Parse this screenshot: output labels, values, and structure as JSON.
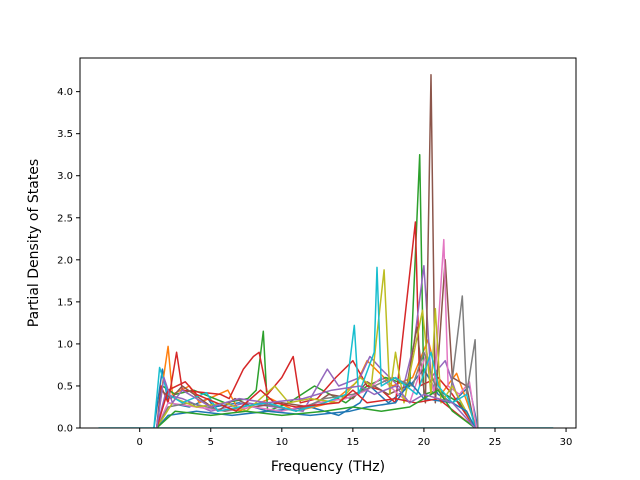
{
  "chart_data": {
    "type": "line",
    "xlabel": "Frequency (THz)",
    "ylabel": "Partial Density of States",
    "xlim": [
      -4.2,
      30.7
    ],
    "ylim": [
      0,
      4.4
    ],
    "x_ticks": [
      0,
      5,
      10,
      15,
      20,
      25,
      30
    ],
    "y_ticks": [
      0.0,
      0.5,
      1.0,
      1.5,
      2.0,
      2.5,
      3.0,
      3.5,
      4.0
    ],
    "x_tick_labels": [
      "0",
      "5",
      "10",
      "15",
      "20",
      "25",
      "30"
    ],
    "y_tick_labels": [
      "0.0",
      "0.5",
      "1.0",
      "1.5",
      "2.0",
      "2.5",
      "3.0",
      "3.5",
      "4.0"
    ],
    "grid": false,
    "legend": "none",
    "colors": [
      "#1f77b4",
      "#ff7f0e",
      "#2ca02c",
      "#d62728",
      "#9467bd",
      "#8c564b",
      "#e377c2",
      "#7f7f7f",
      "#bcbd22",
      "#17becf"
    ],
    "baseline_x_range": [
      -2.9,
      29.1
    ],
    "series": [
      {
        "color": "#1f77b4",
        "points": [
          [
            1.0,
            0
          ],
          [
            1.3,
            0.35
          ],
          [
            1.6,
            0.7
          ],
          [
            2.0,
            0.3
          ],
          [
            3.5,
            0.25
          ],
          [
            4.8,
            0.35
          ],
          [
            5.2,
            0.25
          ],
          [
            7.0,
            0.3
          ],
          [
            9.0,
            0.2
          ],
          [
            12.0,
            0.25
          ],
          [
            14.0,
            0.15
          ],
          [
            15.5,
            0.3
          ],
          [
            16.2,
            0.5
          ],
          [
            17.5,
            0.3
          ],
          [
            19.0,
            0.5
          ],
          [
            20.0,
            0.7
          ],
          [
            21.0,
            0.4
          ],
          [
            22.0,
            0.3
          ],
          [
            23.2,
            0.5
          ],
          [
            23.8,
            0
          ]
        ]
      },
      {
        "color": "#ff7f0e",
        "points": [
          [
            1.2,
            0
          ],
          [
            1.5,
            0.4
          ],
          [
            2.0,
            0.97
          ],
          [
            2.3,
            0.4
          ],
          [
            3.5,
            0.5
          ],
          [
            4.2,
            0.3
          ],
          [
            6.2,
            0.45
          ],
          [
            7.0,
            0.2
          ],
          [
            9.2,
            0.35
          ],
          [
            11.0,
            0.2
          ],
          [
            13.5,
            0.3
          ],
          [
            15.3,
            0.55
          ],
          [
            16.0,
            0.8
          ],
          [
            17.8,
            0.5
          ],
          [
            19.2,
            0.6
          ],
          [
            20.3,
            1.05
          ],
          [
            21.2,
            0.4
          ],
          [
            22.3,
            0.65
          ],
          [
            23.7,
            0
          ]
        ]
      },
      {
        "color": "#2ca02c",
        "points": [
          [
            1.2,
            0
          ],
          [
            1.6,
            0.5
          ],
          [
            2.5,
            0.4
          ],
          [
            3.8,
            0.45
          ],
          [
            6.0,
            0.3
          ],
          [
            7.6,
            0.35
          ],
          [
            8.2,
            0.45
          ],
          [
            8.7,
            1.15
          ],
          [
            9.0,
            0.2
          ],
          [
            10.5,
            0.3
          ],
          [
            12.3,
            0.5
          ],
          [
            14.5,
            0.3
          ],
          [
            16.0,
            0.5
          ],
          [
            17.3,
            0.6
          ],
          [
            19.0,
            0.5
          ],
          [
            19.7,
            3.25
          ],
          [
            20.0,
            0.4
          ],
          [
            21.0,
            0.45
          ],
          [
            22.5,
            0.3
          ],
          [
            23.6,
            0
          ]
        ]
      },
      {
        "color": "#d62728",
        "points": [
          [
            1.2,
            0
          ],
          [
            1.5,
            0.5
          ],
          [
            2.0,
            0.3
          ],
          [
            2.6,
            0.9
          ],
          [
            3.0,
            0.45
          ],
          [
            5.7,
            0.4
          ],
          [
            6.3,
            0.35
          ],
          [
            7.3,
            0.7
          ],
          [
            8.0,
            0.85
          ],
          [
            8.4,
            0.9
          ],
          [
            9.0,
            0.4
          ],
          [
            10.0,
            0.6
          ],
          [
            10.8,
            0.85
          ],
          [
            11.3,
            0.3
          ],
          [
            12.5,
            0.35
          ],
          [
            13.8,
            0.6
          ],
          [
            15.0,
            0.8
          ],
          [
            16.0,
            0.5
          ],
          [
            17.0,
            0.45
          ],
          [
            18.0,
            0.3
          ],
          [
            19.4,
            2.45
          ],
          [
            19.7,
            0.5
          ],
          [
            21.0,
            0.6
          ],
          [
            22.0,
            0.4
          ],
          [
            23.6,
            0
          ]
        ]
      },
      {
        "color": "#9467bd",
        "points": [
          [
            1.2,
            0
          ],
          [
            1.8,
            0.4
          ],
          [
            3.0,
            0.35
          ],
          [
            5.0,
            0.2
          ],
          [
            7.5,
            0.3
          ],
          [
            9.5,
            0.25
          ],
          [
            11.5,
            0.2
          ],
          [
            13.2,
            0.7
          ],
          [
            14.0,
            0.5
          ],
          [
            15.5,
            0.6
          ],
          [
            16.2,
            0.85
          ],
          [
            17.0,
            0.7
          ],
          [
            18.5,
            0.45
          ],
          [
            19.3,
            1.0
          ],
          [
            20.0,
            1.93
          ],
          [
            20.5,
            0.6
          ],
          [
            21.5,
            0.8
          ],
          [
            22.3,
            0.4
          ],
          [
            23.6,
            0
          ]
        ]
      },
      {
        "color": "#8c564b",
        "points": [
          [
            1.2,
            0
          ],
          [
            1.5,
            0.45
          ],
          [
            2.2,
            0.35
          ],
          [
            3.0,
            0.5
          ],
          [
            5.5,
            0.2
          ],
          [
            6.7,
            0.35
          ],
          [
            8.0,
            0.25
          ],
          [
            10.0,
            0.3
          ],
          [
            12.0,
            0.25
          ],
          [
            13.3,
            0.4
          ],
          [
            15.0,
            0.35
          ],
          [
            16.0,
            0.55
          ],
          [
            17.5,
            0.4
          ],
          [
            18.8,
            0.5
          ],
          [
            19.5,
            1.2
          ],
          [
            20.1,
            0.3
          ],
          [
            20.5,
            4.2
          ],
          [
            20.8,
            0.3
          ],
          [
            21.5,
            2.0
          ],
          [
            22.0,
            0.6
          ],
          [
            23.0,
            0.5
          ],
          [
            23.6,
            0
          ]
        ]
      },
      {
        "color": "#e377c2",
        "points": [
          [
            1.2,
            0
          ],
          [
            2.0,
            0.3
          ],
          [
            4.0,
            0.25
          ],
          [
            6.0,
            0.2
          ],
          [
            8.0,
            0.25
          ],
          [
            10.0,
            0.2
          ],
          [
            12.5,
            0.3
          ],
          [
            14.5,
            0.35
          ],
          [
            16.0,
            0.45
          ],
          [
            17.0,
            0.6
          ],
          [
            18.2,
            0.4
          ],
          [
            19.0,
            0.3
          ],
          [
            20.2,
            0.9
          ],
          [
            20.7,
            0.4
          ],
          [
            21.4,
            2.24
          ],
          [
            21.7,
            0.5
          ],
          [
            22.5,
            0.4
          ],
          [
            23.2,
            0.55
          ],
          [
            23.7,
            0
          ]
        ]
      },
      {
        "color": "#7f7f7f",
        "points": [
          [
            1.2,
            0
          ],
          [
            2.0,
            0.25
          ],
          [
            3.5,
            0.3
          ],
          [
            6.0,
            0.2
          ],
          [
            8.5,
            0.3
          ],
          [
            11.0,
            0.2
          ],
          [
            13.0,
            0.35
          ],
          [
            15.0,
            0.4
          ],
          [
            16.5,
            0.5
          ],
          [
            17.8,
            0.6
          ],
          [
            19.2,
            0.5
          ],
          [
            20.0,
            0.9
          ],
          [
            20.8,
            0.5
          ],
          [
            21.8,
            0.3
          ],
          [
            22.7,
            1.57
          ],
          [
            23.0,
            0.4
          ],
          [
            23.6,
            1.05
          ],
          [
            23.8,
            0
          ]
        ]
      },
      {
        "color": "#bcbd22",
        "points": [
          [
            1.2,
            0
          ],
          [
            2.5,
            0.35
          ],
          [
            4.0,
            0.25
          ],
          [
            6.0,
            0.3
          ],
          [
            7.5,
            0.2
          ],
          [
            9.5,
            0.5
          ],
          [
            10.5,
            0.3
          ],
          [
            12.0,
            0.35
          ],
          [
            14.0,
            0.3
          ],
          [
            15.5,
            0.6
          ],
          [
            16.3,
            0.5
          ],
          [
            17.2,
            1.88
          ],
          [
            17.6,
            0.4
          ],
          [
            18.0,
            0.9
          ],
          [
            18.6,
            0.3
          ],
          [
            19.9,
            1.4
          ],
          [
            20.5,
            0.4
          ],
          [
            20.8,
            1.42
          ],
          [
            21.2,
            0.3
          ],
          [
            22.0,
            0.5
          ],
          [
            23.6,
            0
          ]
        ]
      },
      {
        "color": "#17becf",
        "points": [
          [
            1.0,
            0
          ],
          [
            1.4,
            0.72
          ],
          [
            2.0,
            0.4
          ],
          [
            3.0,
            0.3
          ],
          [
            4.7,
            0.42
          ],
          [
            5.5,
            0.2
          ],
          [
            7.0,
            0.25
          ],
          [
            9.0,
            0.3
          ],
          [
            11.0,
            0.2
          ],
          [
            13.0,
            0.3
          ],
          [
            14.5,
            0.4
          ],
          [
            15.1,
            1.22
          ],
          [
            15.4,
            0.4
          ],
          [
            16.5,
            0.9
          ],
          [
            16.7,
            1.91
          ],
          [
            17.0,
            0.5
          ],
          [
            18.0,
            0.6
          ],
          [
            19.5,
            0.4
          ],
          [
            20.5,
            0.9
          ],
          [
            21.0,
            0.5
          ],
          [
            22.0,
            0.3
          ],
          [
            23.0,
            0.4
          ],
          [
            23.6,
            0
          ]
        ]
      },
      {
        "color": "#1f77b4",
        "points": [
          [
            1.2,
            0
          ],
          [
            2.0,
            0.15
          ],
          [
            4.0,
            0.2
          ],
          [
            6.5,
            0.15
          ],
          [
            9.0,
            0.2
          ],
          [
            12.0,
            0.15
          ],
          [
            14.8,
            0.2
          ],
          [
            16.0,
            0.25
          ],
          [
            18.0,
            0.3
          ],
          [
            19.0,
            0.55
          ],
          [
            20.0,
            0.35
          ],
          [
            22.0,
            0.3
          ],
          [
            23.0,
            0.2
          ],
          [
            23.6,
            0
          ]
        ]
      },
      {
        "color": "#d62728",
        "points": [
          [
            1.2,
            0
          ],
          [
            2.0,
            0.45
          ],
          [
            3.2,
            0.55
          ],
          [
            4.0,
            0.4
          ],
          [
            6.8,
            0.2
          ],
          [
            8.5,
            0.45
          ],
          [
            9.5,
            0.3
          ],
          [
            11.0,
            0.25
          ],
          [
            14.0,
            0.3
          ],
          [
            15.0,
            0.45
          ],
          [
            16.0,
            0.3
          ],
          [
            18.0,
            0.35
          ],
          [
            19.4,
            0.3
          ],
          [
            21.0,
            0.35
          ],
          [
            23.6,
            0
          ]
        ]
      },
      {
        "color": "#2ca02c",
        "points": [
          [
            1.2,
            0
          ],
          [
            2.5,
            0.2
          ],
          [
            5.0,
            0.15
          ],
          [
            7.5,
            0.2
          ],
          [
            10.0,
            0.15
          ],
          [
            13.0,
            0.2
          ],
          [
            15.0,
            0.25
          ],
          [
            17.0,
            0.2
          ],
          [
            19.0,
            0.25
          ],
          [
            21.0,
            0.45
          ],
          [
            22.0,
            0.2
          ],
          [
            23.6,
            0
          ]
        ]
      },
      {
        "color": "#9467bd",
        "points": [
          [
            1.2,
            0
          ],
          [
            1.7,
            0.6
          ],
          [
            2.3,
            0.3
          ],
          [
            3.0,
            0.45
          ],
          [
            5.0,
            0.25
          ],
          [
            7.0,
            0.35
          ],
          [
            9.0,
            0.3
          ],
          [
            11.5,
            0.35
          ],
          [
            13.5,
            0.45
          ],
          [
            15.5,
            0.5
          ],
          [
            16.5,
            0.4
          ],
          [
            18.0,
            0.5
          ],
          [
            19.0,
            0.3
          ],
          [
            20.0,
            0.4
          ],
          [
            22.0,
            0.3
          ],
          [
            23.6,
            0
          ]
        ]
      }
    ]
  }
}
